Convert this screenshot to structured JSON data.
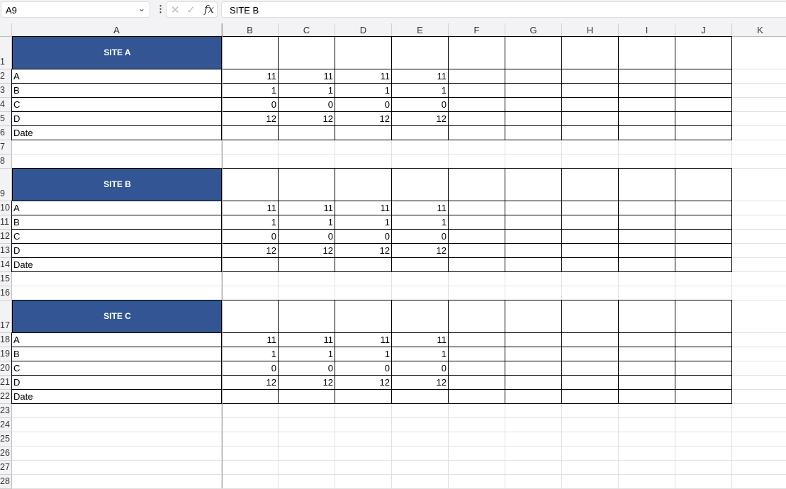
{
  "formula_bar": {
    "name_box": "A9",
    "formula": "SITE B",
    "fx_label": "fx"
  },
  "columns": [
    "A",
    "B",
    "C",
    "D",
    "E",
    "F",
    "G",
    "H",
    "I",
    "J",
    "K"
  ],
  "row_count": 28,
  "colors": {
    "header_fill": "#335593",
    "header_text": "#ffffff"
  },
  "blocks": [
    {
      "title": "SITE A",
      "title_row": 1,
      "rows": [
        {
          "label": "A",
          "values": [
            "11",
            "11",
            "11",
            "11"
          ]
        },
        {
          "label": "B",
          "values": [
            "1",
            "1",
            "1",
            "1"
          ]
        },
        {
          "label": "C",
          "values": [
            "0",
            "0",
            "0",
            "0"
          ]
        },
        {
          "label": "D",
          "values": [
            "12",
            "12",
            "12",
            "12"
          ]
        },
        {
          "label": "Date",
          "values": [
            "",
            "",
            "",
            ""
          ]
        }
      ]
    },
    {
      "title": "SITE B",
      "title_row": 9,
      "rows": [
        {
          "label": "A",
          "values": [
            "11",
            "11",
            "11",
            "11"
          ]
        },
        {
          "label": "B",
          "values": [
            "1",
            "1",
            "1",
            "1"
          ]
        },
        {
          "label": "C",
          "values": [
            "0",
            "0",
            "0",
            "0"
          ]
        },
        {
          "label": "D",
          "values": [
            "12",
            "12",
            "12",
            "12"
          ]
        },
        {
          "label": "Date",
          "values": [
            "",
            "",
            "",
            ""
          ]
        }
      ]
    },
    {
      "title": "SITE C",
      "title_row": 17,
      "rows": [
        {
          "label": "A",
          "values": [
            "11",
            "11",
            "11",
            "11"
          ]
        },
        {
          "label": "B",
          "values": [
            "1",
            "1",
            "1",
            "1"
          ]
        },
        {
          "label": "C",
          "values": [
            "0",
            "0",
            "0",
            "0"
          ]
        },
        {
          "label": "D",
          "values": [
            "12",
            "12",
            "12",
            "12"
          ]
        },
        {
          "label": "Date",
          "values": [
            "",
            "",
            "",
            ""
          ]
        }
      ]
    }
  ]
}
